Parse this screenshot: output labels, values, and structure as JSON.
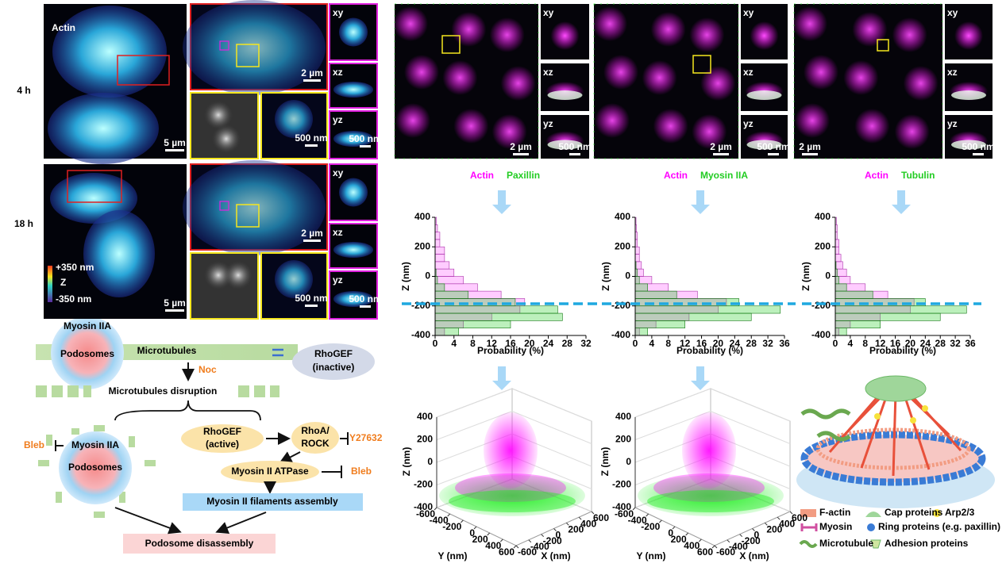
{
  "microscopy": {
    "actin": "Actin",
    "rows": [
      "4 h",
      "18 h"
    ],
    "views": [
      "xy",
      "xz",
      "yz"
    ],
    "scale_5um": "5 µm",
    "scale_2um": "2 µm",
    "scale_500nm": "500 nm",
    "colorbar": {
      "top": "+350 nm",
      "label": "Z",
      "bottom": "-350 nm"
    }
  },
  "pathway": {
    "podosome_top": {
      "myosin": "Myosin IIA",
      "podosomes": "Podosomes"
    },
    "microtubules": "Microtubules",
    "rhogef_inactive": [
      "RhoGEF",
      "(inactive)"
    ],
    "noc": "Noc",
    "disruption": "Microtubules disruption",
    "bleb_left": "Bleb",
    "podosome_left": {
      "myosin": "Myosin IIA",
      "podosomes": "Podosomes"
    },
    "rhogef_active": [
      "RhoGEF",
      "(active)"
    ],
    "rhoa_rock": [
      "RhoA/",
      "ROCK"
    ],
    "y27632": "Y27632",
    "atpase": "Myosin II ATPase",
    "bleb_right": "Bleb",
    "filaments": "Myosin II filaments assembly",
    "disassembly": "Podosome disassembly"
  },
  "model": {
    "legend": [
      "F-actin",
      "Cap proteins",
      "Arp2/3",
      "Myosin",
      "Ring proteins (e.g. paxillin)",
      "Microtubule",
      "Adhesion proteins"
    ]
  },
  "chart_data": [
    {
      "type": "histogram",
      "orientation": "horizontal",
      "xlabel": "Probability (%)",
      "ylabel": "Z (nm)",
      "bins": [
        -400,
        -350,
        -300,
        -250,
        -200,
        -150,
        -100,
        -50,
        0,
        50,
        100,
        150,
        200,
        250,
        300,
        350,
        400
      ],
      "series": [
        {
          "name": "Actin",
          "color": "#ff00ff",
          "values": [
            2,
            6,
            12,
            18,
            19,
            14,
            9,
            6,
            4,
            3,
            2,
            2,
            1,
            1,
            0.5,
            0.3
          ]
        },
        {
          "name": "Paxillin",
          "color": "#22cc22",
          "values": [
            5,
            16,
            27,
            26,
            17,
            7,
            2,
            0.5,
            0.2,
            0,
            0,
            0,
            0,
            0,
            0,
            0
          ]
        }
      ],
      "xlim": [
        0,
        32
      ],
      "xticks": [
        0,
        4,
        8,
        12,
        16,
        20,
        24,
        28,
        32
      ],
      "ylim": [
        -400,
        400
      ],
      "yticks": [
        -400,
        -200,
        0,
        200,
        400
      ],
      "reference_z": -185
    },
    {
      "type": "histogram",
      "orientation": "horizontal",
      "xlabel": "Probability (%)",
      "ylabel": "Z (nm)",
      "bins": [
        -400,
        -350,
        -300,
        -250,
        -200,
        -150,
        -100,
        -50,
        0,
        50,
        100,
        150,
        200,
        250,
        300,
        350,
        400
      ],
      "series": [
        {
          "name": "Actin",
          "color": "#ff00ff",
          "values": [
            1,
            5,
            13,
            20,
            22,
            15,
            8,
            4,
            2,
            1.5,
            1,
            1,
            0.5,
            0.5,
            0.3,
            0.2
          ]
        },
        {
          "name": "Myosin IIA",
          "color": "#22cc22",
          "values": [
            3,
            12,
            28,
            35,
            25,
            10,
            3,
            1,
            0.5,
            0.2,
            0,
            0,
            0,
            0,
            0,
            0
          ]
        }
      ],
      "xlim": [
        0,
        36
      ],
      "xticks": [
        0,
        4,
        8,
        12,
        16,
        20,
        24,
        28,
        32,
        36
      ],
      "ylim": [
        -400,
        400
      ],
      "yticks": [
        -400,
        -200,
        0,
        200,
        400
      ],
      "reference_z": -185
    },
    {
      "type": "histogram",
      "orientation": "horizontal",
      "xlabel": "Probability (%)",
      "ylabel": "Z (nm)",
      "bins": [
        -400,
        -350,
        -300,
        -250,
        -200,
        -150,
        -100,
        -50,
        0,
        50,
        100,
        150,
        200,
        250,
        300,
        350,
        400
      ],
      "series": [
        {
          "name": "Actin",
          "color": "#ff00ff",
          "values": [
            1,
            4,
            12,
            20,
            21,
            14,
            8,
            4,
            3,
            2,
            1.5,
            1,
            1,
            0.5,
            0.5,
            0.3
          ]
        },
        {
          "name": "Tubulin",
          "color": "#22cc22",
          "values": [
            3,
            12,
            28,
            35,
            24,
            10,
            3,
            1,
            0.5,
            0.2,
            0,
            0,
            0,
            0,
            0,
            0
          ]
        }
      ],
      "xlim": [
        0,
        36
      ],
      "xticks": [
        0,
        4,
        8,
        12,
        16,
        20,
        24,
        28,
        32,
        36
      ],
      "ylim": [
        -400,
        400
      ],
      "yticks": [
        -400,
        -200,
        0,
        200,
        400
      ],
      "reference_z": -185
    },
    {
      "type": "scatter3d",
      "xlabel": "X (nm)",
      "ylabel": "Y (nm)",
      "zlabel": "Z (nm)",
      "xlim": [
        -600,
        600
      ],
      "xticks": [
        -600,
        -400,
        -200,
        0,
        200,
        400,
        600
      ],
      "ylim": [
        -600,
        600
      ],
      "yticks": [
        -600,
        -400,
        -200,
        0,
        200,
        400,
        600
      ],
      "zlim": [
        -400,
        400
      ],
      "zticks": [
        -400,
        -200,
        0,
        200,
        400
      ],
      "colors": [
        "#ff00ff",
        "#22ee22"
      ]
    },
    {
      "type": "scatter3d",
      "xlabel": "X (nm)",
      "ylabel": "Y (nm)",
      "zlabel": "Z (nm)",
      "xlim": [
        -600,
        600
      ],
      "xticks": [
        -600,
        -400,
        -200,
        0,
        200,
        400,
        600
      ],
      "ylim": [
        -600,
        600
      ],
      "yticks": [
        -600,
        -400,
        -200,
        0,
        200,
        400,
        600
      ],
      "zlim": [
        -400,
        400
      ],
      "zticks": [
        -400,
        -200,
        0,
        200,
        400
      ],
      "colors": [
        "#ff00ff",
        "#22ee22"
      ]
    }
  ]
}
